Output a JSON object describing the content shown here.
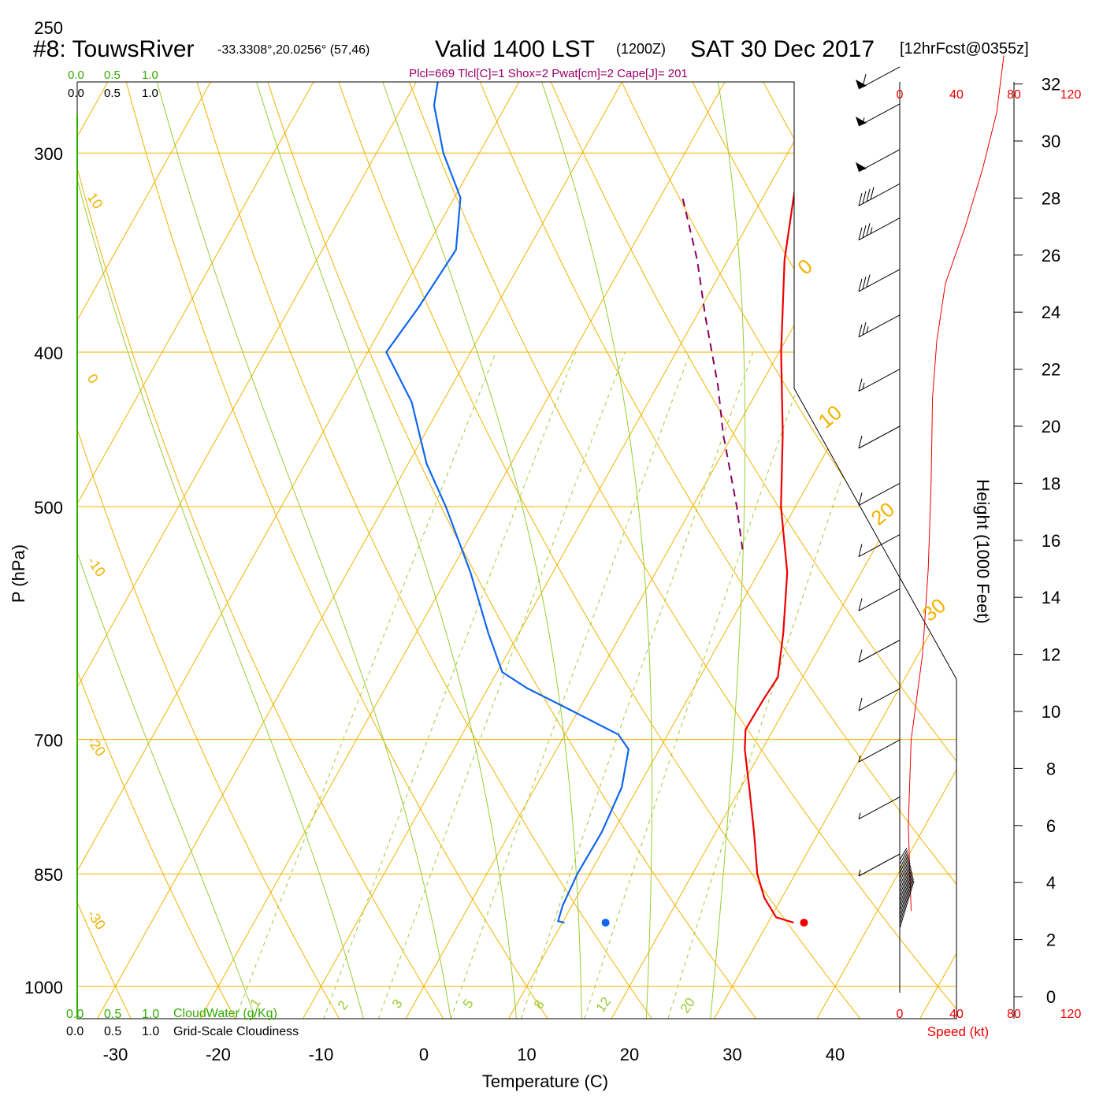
{
  "header": {
    "station": "#8: TouwsRiver",
    "coords": "-33.3308°,20.0256° (57,46)",
    "valid": "Valid 1400 LST",
    "zulu": "(1200Z)",
    "date": "SAT 30 Dec 2017",
    "forecast": "[12hrFcst@0355z]",
    "params": "Plcl=669 Tlcl[C]=1 Shox=2 Pwat[cm]=2 Cape[J]= 201"
  },
  "scales": {
    "cloud_water_ticks": [
      "0.0",
      "0.5",
      "1.0"
    ],
    "cloudiness_ticks": [
      "0.0",
      "0.5",
      "1.0"
    ],
    "cloud_water_label": "CloudWater (g/Kg)",
    "cloudiness_label": "Grid-Scale Cloudiness",
    "speed_ticks": [
      "0",
      "40",
      "80",
      "120"
    ],
    "speed_label": "Speed (kt)"
  },
  "colors": {
    "temperature": "#ee0000",
    "dewpoint": "#1166ee",
    "parcel": "#880066",
    "isotherm": "#f2b200",
    "mixing_ratio": "#99cc33",
    "moist_adiabat": "#99cc33",
    "params_text": "#990066",
    "scale_green": "#33aa00",
    "speed_red": "#ee0000"
  },
  "chart_data": {
    "type": "line",
    "xlabel": "Temperature (C)",
    "ylabel": "P (hPa)",
    "y2label": "Height (1000 Feet)",
    "x_ticks": [
      -30,
      -20,
      -10,
      0,
      10,
      20,
      30,
      40
    ],
    "pressure_ticks": [
      250,
      300,
      400,
      500,
      700,
      850,
      1000
    ],
    "height_ticks": [
      0,
      2,
      4,
      6,
      8,
      10,
      12,
      14,
      16,
      18,
      20,
      22,
      24,
      26,
      28,
      30,
      32
    ],
    "xlim": [
      -33,
      43
    ],
    "ylim_hPa": [
      1120,
      250
    ],
    "isotherm_labels": [
      "10",
      "0",
      "-10",
      "-20",
      "-30",
      "0",
      "10",
      "20",
      "30"
    ],
    "mixing_ratio_labels": [
      "1",
      "2",
      "3",
      "5",
      "8",
      "12",
      "20"
    ],
    "series": [
      {
        "key": "temperature",
        "points": [
          {
            "p": 912,
            "t": 32.5
          },
          {
            "p": 905,
            "t": 30.5
          },
          {
            "p": 880,
            "t": 28.3
          },
          {
            "p": 850,
            "t": 26.3
          },
          {
            "p": 800,
            "t": 23.7
          },
          {
            "p": 750,
            "t": 20.8
          },
          {
            "p": 710,
            "t": 18.3
          },
          {
            "p": 690,
            "t": 17.3
          },
          {
            "p": 660,
            "t": 17.4
          },
          {
            "p": 640,
            "t": 17.6
          },
          {
            "p": 600,
            "t": 15.7
          },
          {
            "p": 550,
            "t": 12.8
          },
          {
            "p": 500,
            "t": 8.6
          },
          {
            "p": 450,
            "t": 4.8
          },
          {
            "p": 400,
            "t": 0.2
          },
          {
            "p": 350,
            "t": -4.5
          },
          {
            "p": 320,
            "t": -7.0
          },
          {
            "p": 300,
            "t": -8.7
          },
          {
            "p": 280,
            "t": -9.5
          },
          {
            "p": 262,
            "t": -9.5
          }
        ]
      },
      {
        "key": "dewpoint",
        "points": [
          {
            "p": 912,
            "t": 10.2
          },
          {
            "p": 910,
            "t": 9.5
          },
          {
            "p": 890,
            "t": 9.1
          },
          {
            "p": 850,
            "t": 8.8
          },
          {
            "p": 800,
            "t": 8.9
          },
          {
            "p": 750,
            "t": 8.4
          },
          {
            "p": 710,
            "t": 7.0
          },
          {
            "p": 695,
            "t": 5.2
          },
          {
            "p": 670,
            "t": -1.0
          },
          {
            "p": 650,
            "t": -6.2
          },
          {
            "p": 635,
            "t": -9.5
          },
          {
            "p": 600,
            "t": -13.0
          },
          {
            "p": 550,
            "t": -18.0
          },
          {
            "p": 500,
            "t": -24.0
          },
          {
            "p": 470,
            "t": -28.2
          },
          {
            "p": 430,
            "t": -33.0
          },
          {
            "p": 400,
            "t": -38.2
          },
          {
            "p": 375,
            "t": -37.5
          },
          {
            "p": 345,
            "t": -37.0
          },
          {
            "p": 320,
            "t": -39.4
          },
          {
            "p": 300,
            "t": -43.5
          },
          {
            "p": 280,
            "t": -47.0
          },
          {
            "p": 262,
            "t": -48.8
          }
        ]
      },
      {
        "key": "parcel",
        "points": [
          {
            "p": 532,
            "t": 7.2
          },
          {
            "p": 500,
            "t": 4.3
          },
          {
            "p": 450,
            "t": -1.0
          },
          {
            "p": 420,
            "t": -4.1
          },
          {
            "p": 380,
            "t": -9.1
          },
          {
            "p": 350,
            "t": -13.0
          },
          {
            "p": 320,
            "t": -17.8
          }
        ]
      }
    ],
    "surface_markers": {
      "temperature": 33.5,
      "dewpoint": 14.2,
      "pressure": 912
    },
    "wind_speed_profile_kt": [
      {
        "h": 3.0,
        "s": 8
      },
      {
        "h": 6,
        "s": 6
      },
      {
        "h": 9,
        "s": 8
      },
      {
        "h": 12,
        "s": 16
      },
      {
        "h": 15,
        "s": 20
      },
      {
        "h": 18,
        "s": 22
      },
      {
        "h": 21,
        "s": 23
      },
      {
        "h": 23,
        "s": 26
      },
      {
        "h": 25,
        "s": 32
      },
      {
        "h": 27,
        "s": 46
      },
      {
        "h": 29,
        "s": 58
      },
      {
        "h": 31,
        "s": 68
      },
      {
        "h": 33,
        "s": 73
      }
    ],
    "wind_barbs": [
      {
        "h": 32.6,
        "s": 60
      },
      {
        "h": 31.3,
        "s": 55
      },
      {
        "h": 29.7,
        "s": 50
      },
      {
        "h": 28.5,
        "s": 40
      },
      {
        "h": 27.3,
        "s": 35
      },
      {
        "h": 25.5,
        "s": 30
      },
      {
        "h": 23.9,
        "s": 25
      },
      {
        "h": 22.0,
        "s": 15
      },
      {
        "h": 20.0,
        "s": 10
      },
      {
        "h": 18.0,
        "s": 10
      },
      {
        "h": 16.2,
        "s": 10
      },
      {
        "h": 14.3,
        "s": 10
      },
      {
        "h": 12.5,
        "s": 10
      },
      {
        "h": 10.8,
        "s": 10
      },
      {
        "h": 9.0,
        "s": 5
      },
      {
        "h": 7.0,
        "s": 5
      },
      {
        "h": 5.0,
        "s": 5
      }
    ]
  }
}
